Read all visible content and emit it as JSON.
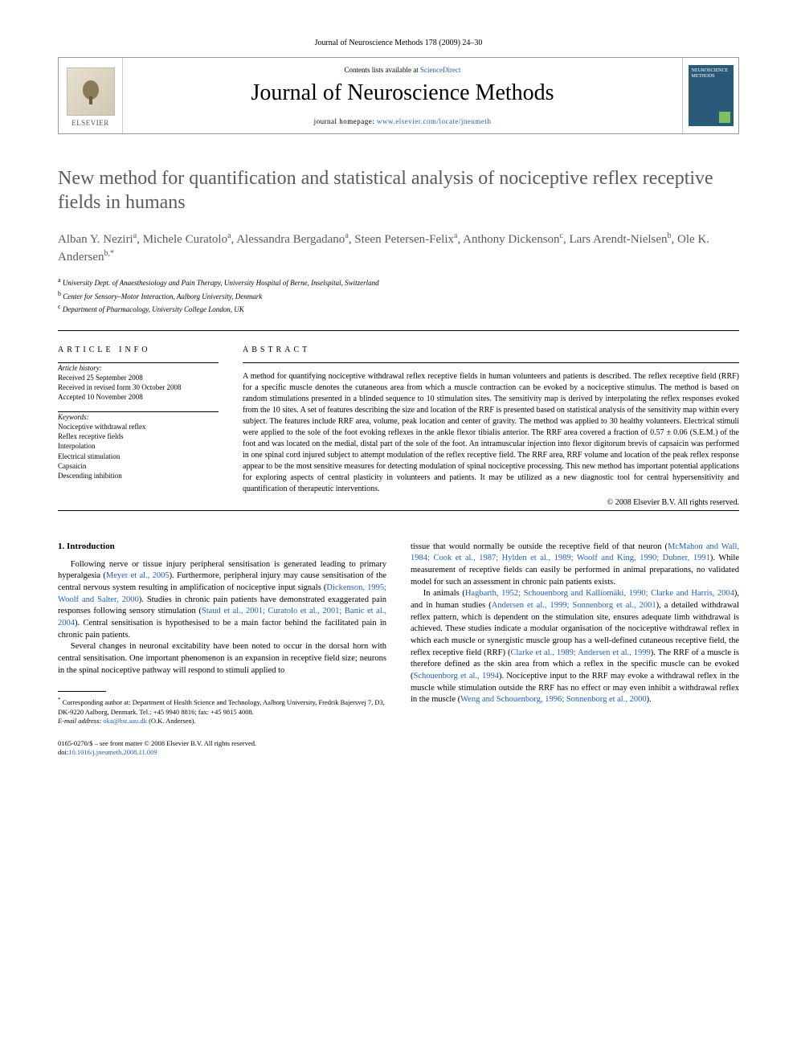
{
  "journal_ref": "Journal of Neuroscience Methods 178 (2009) 24–30",
  "header": {
    "contents_prefix": "Contents lists available at ",
    "contents_link": "ScienceDirect",
    "journal_title": "Journal of Neuroscience Methods",
    "homepage_prefix": "journal homepage: ",
    "homepage_url": "www.elsevier.com/locate/jneumeth",
    "publisher": "ELSEVIER",
    "cover_label": "NEUROSCIENCE METHODS"
  },
  "title": "New method for quantification and statistical analysis of nociceptive reflex receptive fields in humans",
  "authors_html": "Alban Y. Neziri<sup>a</sup>, Michele Curatolo<sup>a</sup>, Alessandra Bergadano<sup>a</sup>, Steen Petersen-Felix<sup>a</sup>, Anthony Dickenson<sup>c</sup>, Lars Arendt-Nielsen<sup>b</sup>, Ole K. Andersen<sup>b,*</sup>",
  "affiliations": [
    {
      "sup": "a",
      "text": "University Dept. of Anaesthesiology and Pain Therapy, University Hospital of Berne, Inselspital, Switzerland"
    },
    {
      "sup": "b",
      "text": "Center for Sensory–Motor Interaction, Aalborg University, Denmark"
    },
    {
      "sup": "c",
      "text": "Department of Pharmacology, University College London, UK"
    }
  ],
  "article_info": {
    "heading": "ARTICLE INFO",
    "history_label": "Article history:",
    "history": [
      "Received 25 September 2008",
      "Received in revised form 30 October 2008",
      "Accepted 10 November 2008"
    ],
    "keywords_label": "Keywords:",
    "keywords": [
      "Nociceptive withdrawal reflex",
      "Reflex receptive fields",
      "Interpolation",
      "Electrical stimulation",
      "Capsaicin",
      "Descending inhibition"
    ]
  },
  "abstract": {
    "heading": "ABSTRACT",
    "text": "A method for quantifying nociceptive withdrawal reflex receptive fields in human volunteers and patients is described. The reflex receptive field (RRF) for a specific muscle denotes the cutaneous area from which a muscle contraction can be evoked by a nociceptive stimulus. The method is based on random stimulations presented in a blinded sequence to 10 stimulation sites. The sensitivity map is derived by interpolating the reflex responses evoked from the 10 sites. A set of features describing the size and location of the RRF is presented based on statistical analysis of the sensitivity map within every subject. The features include RRF area, volume, peak location and center of gravity. The method was applied to 30 healthy volunteers. Electrical stimuli were applied to the sole of the foot evoking reflexes in the ankle flexor tibialis anterior. The RRF area covered a fraction of 0.57 ± 0.06 (S.E.M.) of the foot and was located on the medial, distal part of the sole of the foot. An intramuscular injection into flexor digitorum brevis of capsaicin was performed in one spinal cord injured subject to attempt modulation of the reflex receptive field. The RRF area, RRF volume and location of the peak reflex response appear to be the most sensitive measures for detecting modulation of spinal nociceptive processing. This new method has important potential applications for exploring aspects of central plasticity in volunteers and patients. It may be utilized as a new diagnostic tool for central hypersensitivity and quantification of therapeutic interventions.",
    "copyright": "© 2008 Elsevier B.V. All rights reserved."
  },
  "body": {
    "section_heading": "1. Introduction",
    "left_paragraphs": [
      "Following nerve or tissue injury peripheral sensitisation is generated leading to primary hyperalgesia (<a href=\"#\">Meyer et al., 2005</a>). Furthermore, peripheral injury may cause sensitisation of the central nervous system resulting in amplification of nociceptive input signals (<a href=\"#\">Dickenson, 1995; Woolf and Salter, 2000</a>). Studies in chronic pain patients have demonstrated exaggerated pain responses following sensory stimulation (<a href=\"#\">Staud et al., 2001; Curatolo et al., 2001; Banic et al., 2004</a>). Central sensitisation is hypothesised to be a main factor behind the facilitated pain in chronic pain patients.",
      "Several changes in neuronal excitability have been noted to occur in the dorsal horn with central sensitisation. One important phenomenon is an expansion in receptive field size; neurons in the spinal nociceptive pathway will respond to stimuli applied to"
    ],
    "right_paragraphs": [
      "tissue that would normally be outside the receptive field of that neuron (<a href=\"#\">McMahon and Wall, 1984; Cook et al., 1987; Hylden et al., 1989; Woolf and King, 1990; Dubner, 1991</a>). While measurement of receptive fields can easily be performed in animal preparations, no validated model for such an assessment in chronic pain patients exists.",
      "In animals (<a href=\"#\">Hagbarth, 1952; Schouenborg and Kalliomäki, 1990; Clarke and Harris, 2004</a>), and in human studies (<a href=\"#\">Andersen et al., 1999; Sonnenborg et al., 2001</a>), a detailed withdrawal reflex pattern, which is dependent on the stimulation site, ensures adequate limb withdrawal is achieved. These studies indicate a modular organisation of the nociceptive withdrawal reflex in which each muscle or synergistic muscle group has a well-defined cutaneous receptive field, the reflex receptive field (RRF) (<a href=\"#\">Clarke et al., 1989; Andersen et al., 1999</a>). The RRF of a muscle is therefore defined as the skin area from which a reflex in the specific muscle can be evoked (<a href=\"#\">Schouenborg et al., 1994</a>). Nociceptive input to the RRF may evoke a withdrawal reflex in the muscle while stimulation outside the RRF has no effect or may even inhibit a withdrawal reflex in the muscle (<a href=\"#\">Weng and Schouenborg, 1996; Sonnenborg et al., 2000</a>)."
    ]
  },
  "corresponding": {
    "marker": "*",
    "text": "Corresponding author at: Department of Health Science and Technology, Aalborg University, Fredrik Bajersvej 7, D3, DK-9220 Aalborg, Denmark. Tel.: +45 9940 8816; fax: +45 9815 4008.",
    "email_label": "E-mail address:",
    "email": "oka@hst.aau.dk",
    "email_suffix": "(O.K. Andersen)."
  },
  "footer": {
    "issn_line": "0165-0270/$ – see front matter © 2008 Elsevier B.V. All rights reserved.",
    "doi_prefix": "doi:",
    "doi": "10.1016/j.jneumeth.2008.11.009"
  },
  "colors": {
    "link": "#2060c0",
    "title_gray": "#5a5a5a",
    "cover_bg": "#2a5a7a",
    "cover_accent": "#7fbf5f"
  }
}
